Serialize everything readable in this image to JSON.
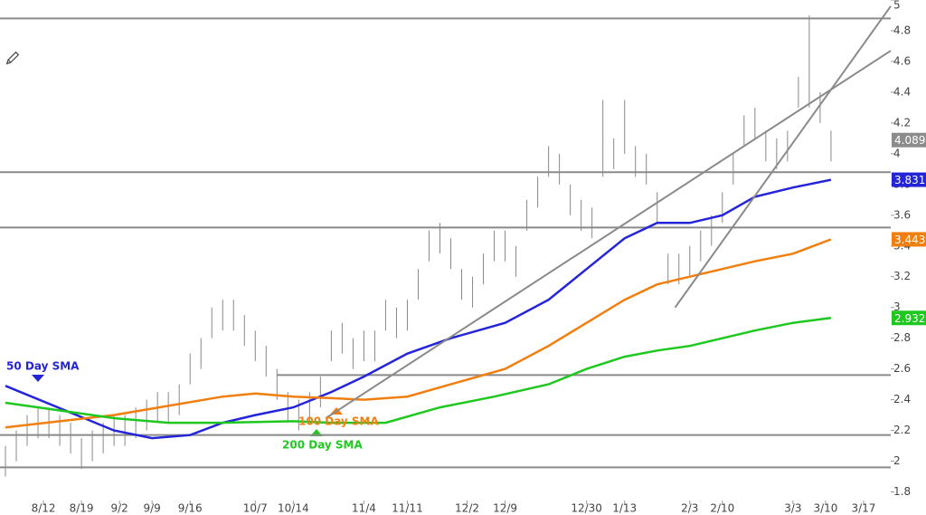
{
  "chart_data": {
    "type": "ohlc",
    "xlim": [
      -1,
      163
    ],
    "ylim": [
      1.65,
      5.0
    ],
    "yticks": [
      1.8,
      2,
      2.2,
      2.4,
      2.6,
      2.8,
      3,
      3.2,
      3.4,
      3.6,
      3.8,
      4,
      4.2,
      4.4,
      4.6,
      4.8,
      5
    ],
    "xticks": [
      {
        "value": 7,
        "label": "8/12"
      },
      {
        "value": 14,
        "label": "8/19"
      },
      {
        "value": 21,
        "label": "9/2"
      },
      {
        "value": 27,
        "label": "9/9"
      },
      {
        "value": 34,
        "label": "9/16"
      },
      {
        "value": 46,
        "label": "10/7"
      },
      {
        "value": 53,
        "label": "10/14"
      },
      {
        "value": 66,
        "label": "11/4"
      },
      {
        "value": 74,
        "label": "11/11"
      },
      {
        "value": 85,
        "label": "12/2"
      },
      {
        "value": 92,
        "label": "12/9"
      },
      {
        "value": 107,
        "label": "12/30"
      },
      {
        "value": 114,
        "label": "1/13"
      },
      {
        "value": 126,
        "label": "2/3"
      },
      {
        "value": 132,
        "label": "2/10"
      },
      {
        "value": 145,
        "label": "3/3"
      },
      {
        "value": 151,
        "label": "3/10"
      },
      {
        "value": 158,
        "label": "3/17"
      }
    ],
    "bars": {
      "color": "#888888",
      "x": [
        0,
        2,
        4,
        6,
        8,
        10,
        12,
        14,
        16,
        18,
        20,
        22,
        24,
        26,
        28,
        30,
        32,
        34,
        36,
        38,
        40,
        42,
        44,
        46,
        48,
        50,
        52,
        54,
        56,
        58,
        60,
        62,
        64,
        66,
        68,
        70,
        72,
        74,
        76,
        78,
        80,
        82,
        84,
        86,
        88,
        90,
        92,
        94,
        96,
        98,
        100,
        102,
        104,
        106,
        108,
        110,
        112,
        114,
        116,
        118,
        120,
        122,
        124,
        126,
        128,
        130,
        132,
        134,
        136,
        138,
        140,
        142,
        144,
        146,
        148,
        150,
        152
      ],
      "high": [
        2.1,
        2.2,
        2.3,
        2.35,
        2.35,
        2.3,
        2.25,
        2.15,
        2.2,
        2.25,
        2.3,
        2.3,
        2.35,
        2.4,
        2.45,
        2.45,
        2.5,
        2.7,
        2.8,
        3.0,
        3.05,
        3.05,
        2.95,
        2.85,
        2.75,
        2.6,
        2.45,
        2.4,
        2.45,
        2.55,
        2.85,
        2.9,
        2.8,
        2.85,
        2.85,
        3.05,
        3.0,
        3.05,
        3.25,
        3.5,
        3.55,
        3.45,
        3.25,
        3.2,
        3.35,
        3.5,
        3.5,
        3.4,
        3.7,
        3.85,
        4.05,
        4.0,
        3.8,
        3.7,
        3.65,
        4.35,
        4.1,
        4.35,
        4.05,
        4.0,
        3.75,
        3.35,
        3.35,
        3.4,
        3.5,
        3.6,
        3.75,
        4.0,
        4.25,
        4.3,
        4.15,
        4.1,
        4.15,
        4.5,
        4.9,
        4.4,
        4.15
      ],
      "low": [
        1.9,
        2.0,
        2.1,
        2.15,
        2.15,
        2.1,
        2.05,
        1.95,
        2.0,
        2.05,
        2.1,
        2.1,
        2.15,
        2.2,
        2.25,
        2.25,
        2.3,
        2.5,
        2.6,
        2.8,
        2.85,
        2.85,
        2.75,
        2.65,
        2.55,
        2.4,
        2.25,
        2.2,
        2.25,
        2.35,
        2.65,
        2.7,
        2.6,
        2.65,
        2.65,
        2.85,
        2.8,
        2.85,
        3.05,
        3.3,
        3.35,
        3.25,
        3.05,
        3.0,
        3.15,
        3.3,
        3.3,
        3.2,
        3.5,
        3.65,
        3.85,
        3.8,
        3.6,
        3.5,
        3.45,
        3.85,
        3.9,
        4.0,
        3.85,
        3.8,
        3.55,
        3.15,
        3.15,
        3.2,
        3.3,
        3.4,
        3.55,
        3.8,
        4.05,
        4.1,
        3.95,
        3.9,
        3.95,
        4.3,
        4.3,
        4.2,
        3.95
      ]
    },
    "series": [
      {
        "name": "50 Day SMA",
        "color": "#2424d8",
        "x": [
          0,
          20,
          27,
          34,
          40,
          46,
          53,
          60,
          66,
          74,
          82,
          92,
          100,
          107,
          114,
          120,
          126,
          132,
          138,
          145,
          152
        ],
        "values": [
          2.49,
          2.2,
          2.15,
          2.17,
          2.25,
          2.3,
          2.35,
          2.45,
          2.55,
          2.7,
          2.8,
          2.9,
          3.05,
          3.25,
          3.45,
          3.55,
          3.55,
          3.6,
          3.72,
          3.78,
          3.831
        ]
      },
      {
        "name": "100 Day SMA",
        "color": "#f07f10",
        "x": [
          0,
          10,
          20,
          30,
          40,
          46,
          53,
          60,
          66,
          74,
          82,
          92,
          100,
          107,
          114,
          120,
          126,
          132,
          138,
          145,
          152
        ],
        "values": [
          2.22,
          2.26,
          2.3,
          2.36,
          2.42,
          2.44,
          2.42,
          2.41,
          2.4,
          2.42,
          2.5,
          2.6,
          2.75,
          2.9,
          3.05,
          3.15,
          3.2,
          3.25,
          3.3,
          3.35,
          3.443
        ]
      },
      {
        "name": "200 Day SMA",
        "color": "#1ec81e",
        "x": [
          0,
          10,
          20,
          30,
          40,
          53,
          60,
          70,
          80,
          90,
          100,
          107,
          114,
          120,
          126,
          132,
          138,
          145,
          152
        ],
        "values": [
          2.38,
          2.33,
          2.28,
          2.25,
          2.25,
          2.26,
          2.25,
          2.25,
          2.35,
          2.42,
          2.5,
          2.6,
          2.68,
          2.72,
          2.75,
          2.8,
          2.85,
          2.9,
          2.932
        ]
      }
    ],
    "levels": [
      {
        "value": 4.88,
        "from": -1
      },
      {
        "value": 3.88,
        "from": -1
      },
      {
        "value": 3.52,
        "from": -1
      },
      {
        "value": 2.56,
        "from": 50
      },
      {
        "value": 2.17,
        "from": -1
      },
      {
        "value": 1.96,
        "from": -1
      }
    ],
    "trendlines": [
      {
        "x": [
          59,
          163
        ],
        "y": [
          2.28,
          4.67
        ]
      },
      {
        "x": [
          123.3,
          163
        ],
        "y": [
          3.0,
          4.96
        ]
      }
    ],
    "last_values": [
      {
        "value": 4.089,
        "color": "#8c8c8c"
      },
      {
        "value": 3.831,
        "color": "#2424d8"
      },
      {
        "value": 3.443,
        "color": "#f07f10"
      },
      {
        "value": 2.932,
        "color": "#1ec81e"
      }
    ]
  }
}
